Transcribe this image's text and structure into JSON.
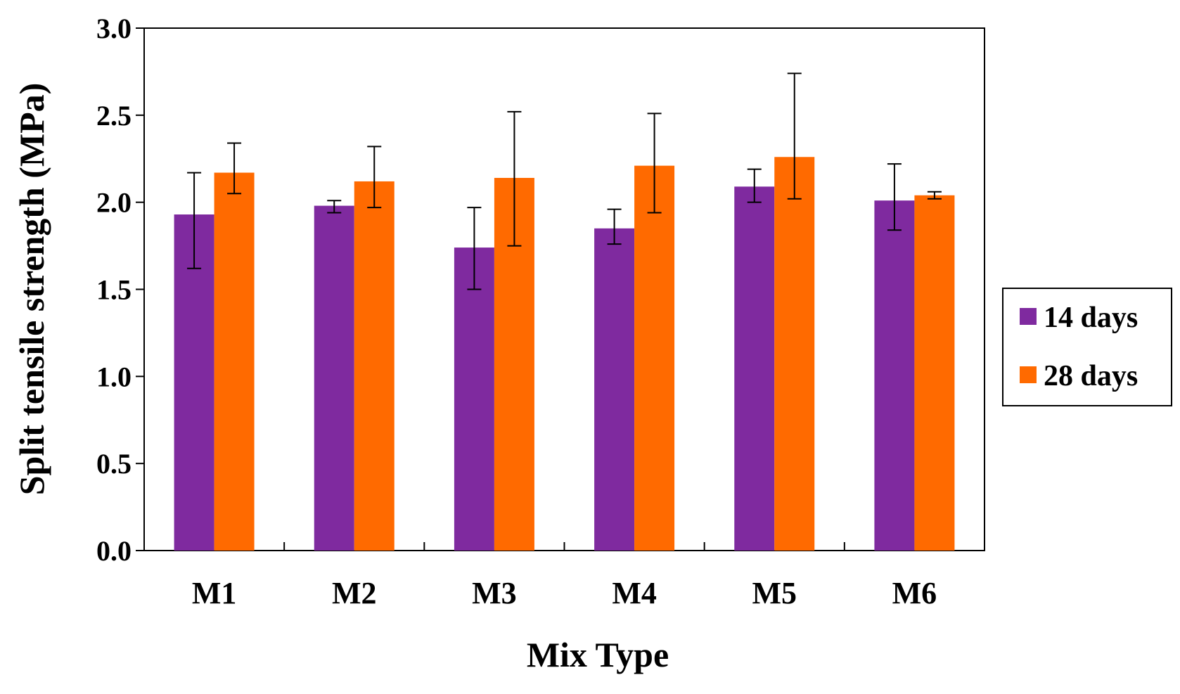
{
  "chart_data": {
    "type": "bar",
    "title": "",
    "xlabel": "Mix Type",
    "ylabel": "Split tensile strength (MPa)",
    "ylim": [
      0.0,
      3.0
    ],
    "yticks": [
      "0.0",
      "0.5",
      "1.0",
      "1.5",
      "2.0",
      "2.5",
      "3.0"
    ],
    "grid": false,
    "legend_position": "right",
    "categories": [
      "M1",
      "M2",
      "M3",
      "M4",
      "M5",
      "M6"
    ],
    "series": [
      {
        "name": "14 days",
        "color": "#7f2a9f",
        "values": [
          1.93,
          1.98,
          1.74,
          1.85,
          2.09,
          2.01
        ],
        "error_low": [
          1.62,
          1.94,
          1.5,
          1.76,
          2.0,
          1.84
        ],
        "error_high": [
          2.17,
          2.01,
          1.97,
          1.96,
          2.19,
          2.22
        ]
      },
      {
        "name": "28 days",
        "color": "#ff6a00",
        "values": [
          2.17,
          2.12,
          2.14,
          2.21,
          2.26,
          2.04
        ],
        "error_low": [
          2.05,
          1.97,
          1.75,
          1.94,
          2.02,
          2.02
        ],
        "error_high": [
          2.34,
          2.32,
          2.52,
          2.51,
          2.74,
          2.06
        ]
      }
    ]
  }
}
